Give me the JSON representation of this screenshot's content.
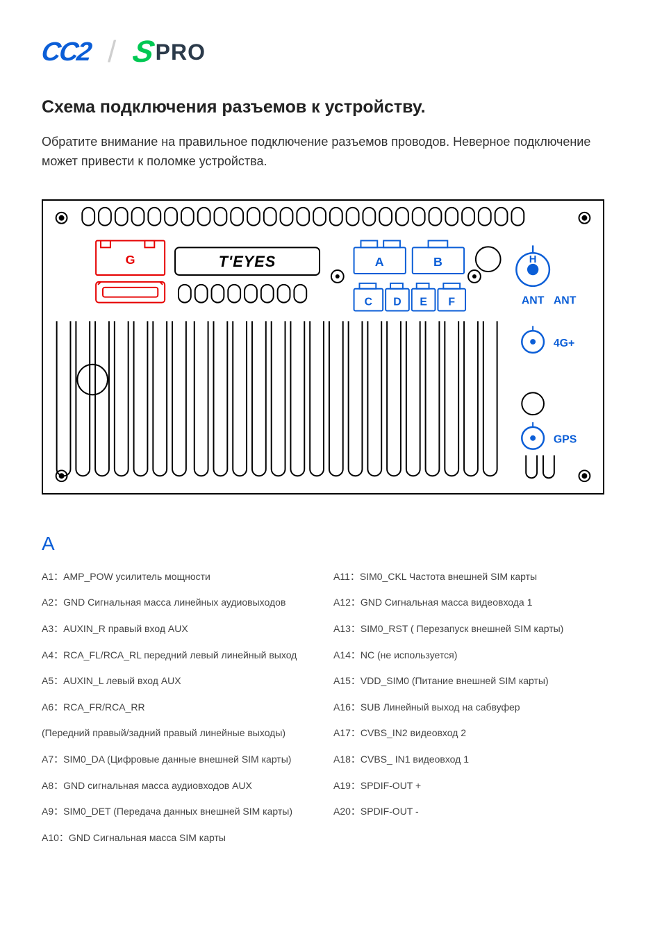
{
  "logos": {
    "cc2": "CC2",
    "spro_s": "S",
    "spro_pro": "PRO"
  },
  "title": "Схема подключения разъемов к устройству.",
  "intro": "Обратите внимание на правильное подключение разъемов проводов. Неверное подключение может привести к поломке устройства.",
  "diagram": {
    "brand_label": "T'EYES",
    "connectors": {
      "G": {
        "label": "G",
        "color": "#e60000"
      },
      "A": {
        "label": "A",
        "color": "#0b5ed7"
      },
      "B": {
        "label": "B",
        "color": "#0b5ed7"
      },
      "C": {
        "label": "C",
        "color": "#0b5ed7"
      },
      "D": {
        "label": "D",
        "color": "#0b5ed7"
      },
      "E": {
        "label": "E",
        "color": "#0b5ed7"
      },
      "F": {
        "label": "F",
        "color": "#0b5ed7"
      },
      "H": {
        "label": "H",
        "color": "#0b5ed7"
      }
    },
    "ports": {
      "ant": {
        "label": "ANT",
        "color": "#0b5ed7"
      },
      "4g": {
        "label": "4G+",
        "color": "#0b5ed7"
      },
      "gps": {
        "label": "GPS",
        "color": "#0b5ed7"
      }
    },
    "stroke_black": "#000000",
    "stroke_red": "#e60000",
    "stroke_blue": "#0b5ed7",
    "line_width": 2
  },
  "section": {
    "header": "A",
    "header_color": "#0b5ed7",
    "pins_left": [
      {
        "id": "A1",
        "signal": "AMP_POW",
        "desc": "усилитель мощности"
      },
      {
        "id": "A2",
        "signal": "GND",
        "desc": "Сигнальная масса линейных аудиовыходов"
      },
      {
        "id": "A3",
        "signal": "AUXIN_R",
        "desc": " правый вход AUX"
      },
      {
        "id": "A4",
        "signal": "RCA_FL/RCA_RL",
        "desc": "передний левый линейный выход"
      },
      {
        "id": "A5",
        "signal": "AUXIN_L",
        "desc": " левый вход AUX"
      },
      {
        "id": "A6",
        "signal": "RCA_FR/RCA_RR",
        "desc": ""
      },
      {
        "id": "",
        "signal": "",
        "desc": " (Передний правый/задний правый линейные выходы)"
      },
      {
        "id": "A7",
        "signal": "SIM0_DA",
        "desc": " (Цифровые данные внешней SIM карты)"
      },
      {
        "id": "A8",
        "signal": "GND",
        "desc": "сигнальная масса аудиовходов AUX"
      },
      {
        "id": "A9",
        "signal": "SIM0_DET",
        "desc": " (Передача данных внешней SIM карты)"
      },
      {
        "id": "A10",
        "signal": "GND",
        "desc": " Сигнальная масса SIM карты"
      }
    ],
    "pins_right": [
      {
        "id": "A11",
        "signal": "SIM0_CKL",
        "desc": " Частота внешней SIM карты"
      },
      {
        "id": "A12",
        "signal": "GND",
        "desc": " Сигнальная масса видеовхода 1"
      },
      {
        "id": "A13",
        "signal": "SIM0_RST",
        "desc": " ( Перезапуск внешней SIM карты)"
      },
      {
        "id": "A14",
        "signal": "NC",
        "desc": "(не используется)"
      },
      {
        "id": "A15",
        "signal": "VDD_SIM0",
        "desc": "(Питание внешней SIM карты)"
      },
      {
        "id": "A16",
        "signal": "SUB",
        "desc": " Линейный выход на сабвуфер"
      },
      {
        "id": "A17",
        "signal": "CVBS_IN2",
        "desc": "видеовход 2"
      },
      {
        "id": "A18",
        "signal": "CVBS_ IN1",
        "desc": "видеовход 1"
      },
      {
        "id": "A19",
        "signal": "SPDIF-OUT +",
        "desc": ""
      },
      {
        "id": "A20",
        "signal": "SPDIF-OUT -",
        "desc": ""
      }
    ]
  }
}
